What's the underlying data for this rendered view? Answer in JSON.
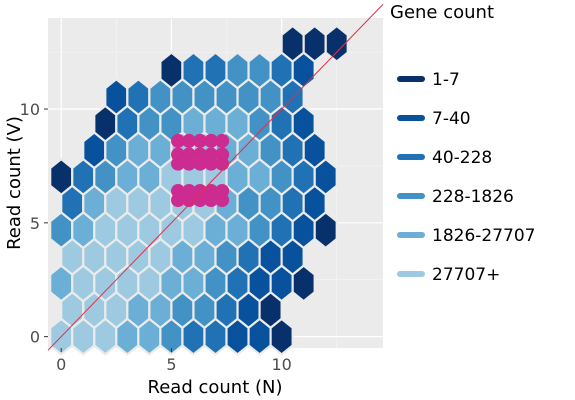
{
  "chart_data": {
    "type": "hexbin",
    "xlabel": "Read count (N)",
    "ylabel": "Read count (V)",
    "xlim": [
      -0.6,
      14.6
    ],
    "ylim": [
      -0.5,
      14.0
    ],
    "x_ticks": [
      0,
      5,
      10
    ],
    "y_ticks": [
      0,
      5,
      10
    ],
    "grid": true,
    "legend": {
      "title": "Gene count",
      "position": "right",
      "entries": [
        {
          "label": "1-7",
          "color": "#08306b"
        },
        {
          "label": "7-40",
          "color": "#08519c"
        },
        {
          "label": "40-228",
          "color": "#2171b5"
        },
        {
          "label": "228-1826",
          "color": "#4292c6"
        },
        {
          "label": "1826-27707",
          "color": "#6baed6"
        },
        {
          "label": "27707+",
          "color": "#9ecae1"
        }
      ]
    },
    "diagonal": {
      "from": [
        -0.6,
        -0.6
      ],
      "to": [
        14.6,
        14.6
      ],
      "color": "#e0304a"
    },
    "hex_row_step": 1.17,
    "hex_col_step": 1.0,
    "hex_rows": [
      {
        "y": 0.0,
        "x_start": 0,
        "levels": [
          5,
          5,
          5,
          4,
          4,
          3,
          2,
          2,
          1,
          1,
          0
        ]
      },
      {
        "y": 1.17,
        "x_start": 0.5,
        "levels": [
          5,
          5,
          5,
          4,
          4,
          3,
          3,
          2,
          1,
          0
        ]
      },
      {
        "y": 2.34,
        "x_start": 0,
        "levels": [
          4,
          5,
          5,
          5,
          5,
          4,
          4,
          3,
          2,
          1,
          1,
          0
        ]
      },
      {
        "y": 3.51,
        "x_start": 0.5,
        "levels": [
          5,
          5,
          5,
          5,
          5,
          4,
          4,
          3,
          2,
          1,
          1
        ]
      },
      {
        "y": 4.68,
        "x_start": 0,
        "levels": [
          3,
          4,
          5,
          5,
          5,
          5,
          5,
          4,
          4,
          3,
          2,
          1,
          0
        ]
      },
      {
        "y": 5.85,
        "x_start": 0.5,
        "levels": [
          2,
          4,
          5,
          5,
          5,
          5,
          5,
          4,
          3,
          3,
          2,
          1
        ]
      },
      {
        "y": 7.02,
        "x_start": 0,
        "levels": [
          0,
          2,
          3,
          4,
          4,
          5,
          5,
          5,
          4,
          4,
          3,
          2,
          1
        ]
      },
      {
        "y": 8.19,
        "x_start": 1.5,
        "levels": [
          1,
          3,
          4,
          4,
          5,
          5,
          4,
          4,
          3,
          2,
          1
        ]
      },
      {
        "y": 9.36,
        "x_start": 2,
        "levels": [
          0,
          2,
          3,
          3,
          4,
          4,
          4,
          3,
          2,
          1
        ]
      },
      {
        "y": 10.53,
        "x_start": 2.5,
        "levels": [
          1,
          2,
          3,
          3,
          3,
          3,
          3,
          3,
          2
        ]
      },
      {
        "y": 11.7,
        "x_start": 5,
        "levels": [
          0,
          2,
          2,
          3,
          3,
          2,
          1
        ]
      },
      {
        "y": 12.87,
        "x_start": 10.5,
        "levels": [
          0,
          0,
          0
        ]
      }
    ],
    "magenta_color": "#cc2b8f",
    "magenta_points": {
      "x": [
        5.3,
        5.8,
        6.3,
        6.8,
        7.3
      ],
      "y_groups": [
        [
          6.0,
          6.4
        ],
        [
          7.6,
          8.0
        ],
        [
          8.6
        ]
      ]
    }
  }
}
